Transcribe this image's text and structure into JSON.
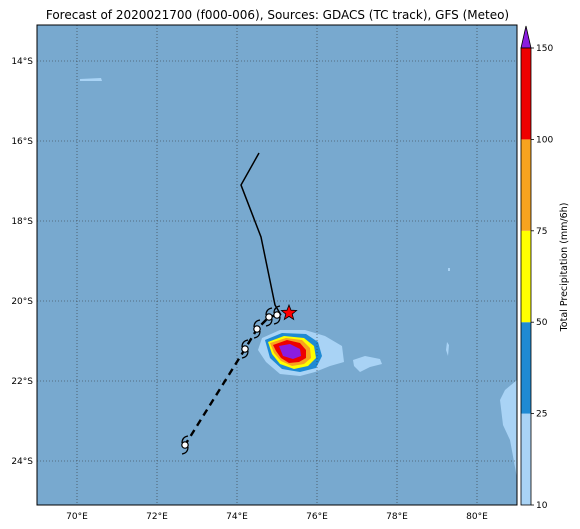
{
  "title": "Forecast of 2020021700 (f000-006), Sources: GDACS (TC track), GFS (Meteo)",
  "map": {
    "ocean_color": "#78a9cf",
    "land_color": "#a9d3f5",
    "lon_ticks": [
      "70°E",
      "72°E",
      "74°E",
      "76°E",
      "78°E",
      "80°E"
    ],
    "lat_ticks": [
      "14°S",
      "16°S",
      "18°S",
      "20°S",
      "22°S",
      "24°S"
    ]
  },
  "colorbar": {
    "label": "Total Precipitation (mm/6h)",
    "ticks": [
      "10",
      "25",
      "50",
      "75",
      "100",
      "150"
    ],
    "colors": [
      "#a9d3f5",
      "#1f8ad3",
      "#ffff00",
      "#f7a31f",
      "#ee0000",
      "#8a1de0"
    ]
  },
  "chart_data": {
    "type": "map",
    "title": "Forecast of 2020021700 (f000-006), Sources: GDACS (TC track), GFS (Meteo)",
    "xlim": [
      69,
      81
    ],
    "ylim": [
      -25.1,
      -13.1
    ],
    "observed_track": [
      {
        "lon": 74.55,
        "lat": -16.3
      },
      {
        "lon": 74.1,
        "lat": -17.1
      },
      {
        "lon": 74.6,
        "lat": -18.4
      },
      {
        "lon": 74.95,
        "lat": -20.1
      },
      {
        "lon": 75.1,
        "lat": -20.35
      }
    ],
    "forecast_track": [
      {
        "lon": 75.0,
        "lat": -20.35
      },
      {
        "lon": 74.8,
        "lat": -20.4
      },
      {
        "lon": 74.5,
        "lat": -20.7
      },
      {
        "lon": 74.2,
        "lat": -21.2
      },
      {
        "lon": 72.7,
        "lat": -23.6
      }
    ],
    "current_position": {
      "lon": 75.3,
      "lat": -20.3
    },
    "precip_levels": [
      10,
      25,
      50,
      75,
      100,
      150
    ],
    "precip_unit": "mm/6h"
  }
}
